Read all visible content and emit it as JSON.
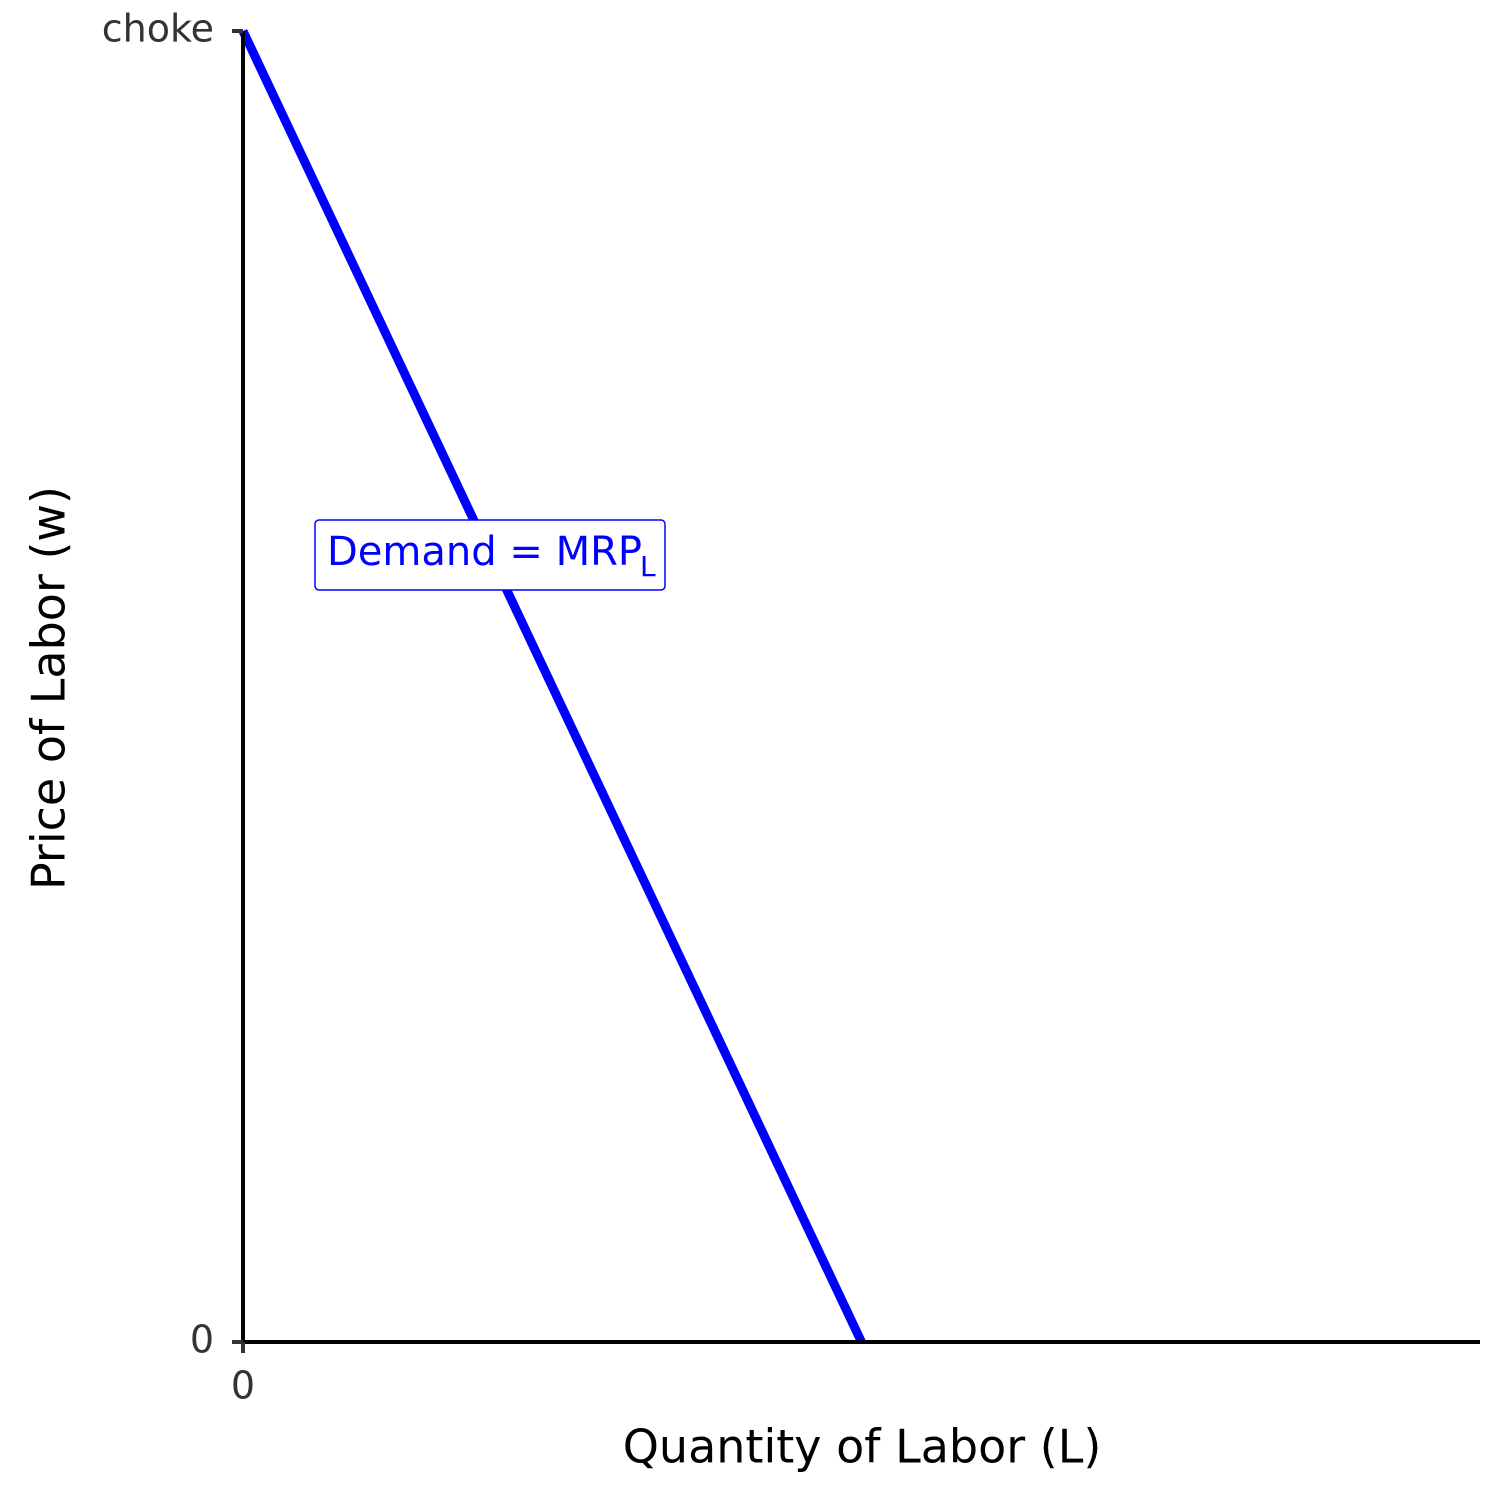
{
  "chart_data": {
    "type": "line",
    "x_label": "Quantity of Labor (L)",
    "y_label": "Price of Labor (w)",
    "x": [
      0,
      5
    ],
    "series": [
      {
        "name": "Demand = MRP",
        "subscript": "L",
        "color": "#0000ff",
        "values": [
          10,
          0
        ]
      }
    ],
    "xlim": [
      0,
      10
    ],
    "xticks": [
      0
    ],
    "ylim": [
      0,
      10
    ],
    "yticks": [
      0,
      {
        "value": 10,
        "label": "choke"
      }
    ],
    "grid": false
  }
}
